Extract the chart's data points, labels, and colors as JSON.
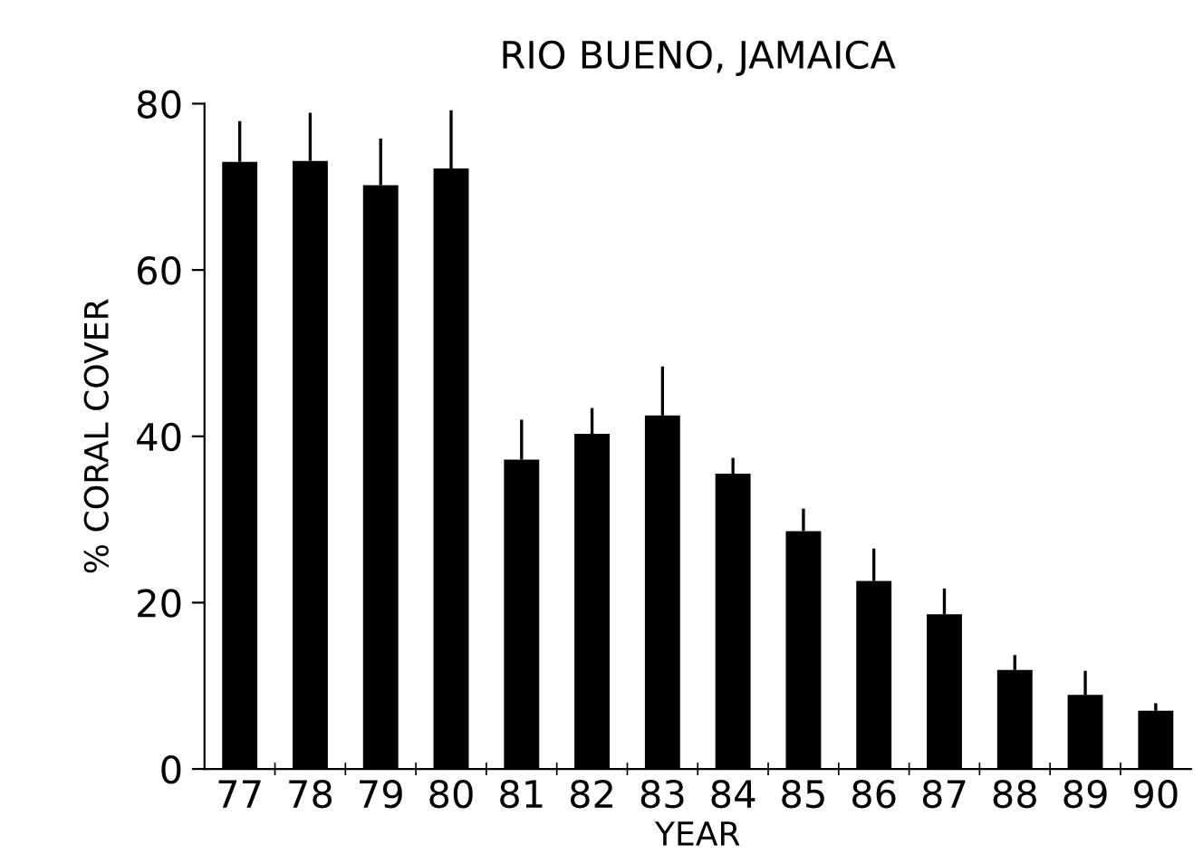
{
  "chart_data": {
    "type": "bar",
    "title": "RIO BUENO, JAMAICA",
    "xlabel": "YEAR",
    "ylabel": "% CORAL COVER",
    "categories": [
      "77",
      "78",
      "79",
      "80",
      "81",
      "82",
      "83",
      "84",
      "85",
      "86",
      "87",
      "88",
      "89",
      "90"
    ],
    "values": [
      73.0,
      73.1,
      70.2,
      72.2,
      37.2,
      40.3,
      42.5,
      35.5,
      28.6,
      22.6,
      18.6,
      11.9,
      8.9,
      7.0
    ],
    "errors": [
      [
        73.0,
        77.9
      ],
      [
        73.1,
        78.9
      ],
      [
        70.2,
        75.8
      ],
      [
        72.2,
        79.2
      ],
      [
        37.2,
        42.0
      ],
      [
        40.3,
        43.4
      ],
      [
        42.5,
        48.4
      ],
      [
        35.5,
        37.4
      ],
      [
        28.6,
        31.3
      ],
      [
        22.6,
        26.5
      ],
      [
        18.6,
        21.7
      ],
      [
        11.9,
        13.7
      ],
      [
        8.9,
        11.8
      ],
      [
        7.0,
        7.9
      ]
    ],
    "color": "#000000",
    "ylim": [
      0,
      80
    ],
    "yticks": [
      0,
      20,
      40,
      60,
      80
    ],
    "grid": false,
    "legend": false
  }
}
